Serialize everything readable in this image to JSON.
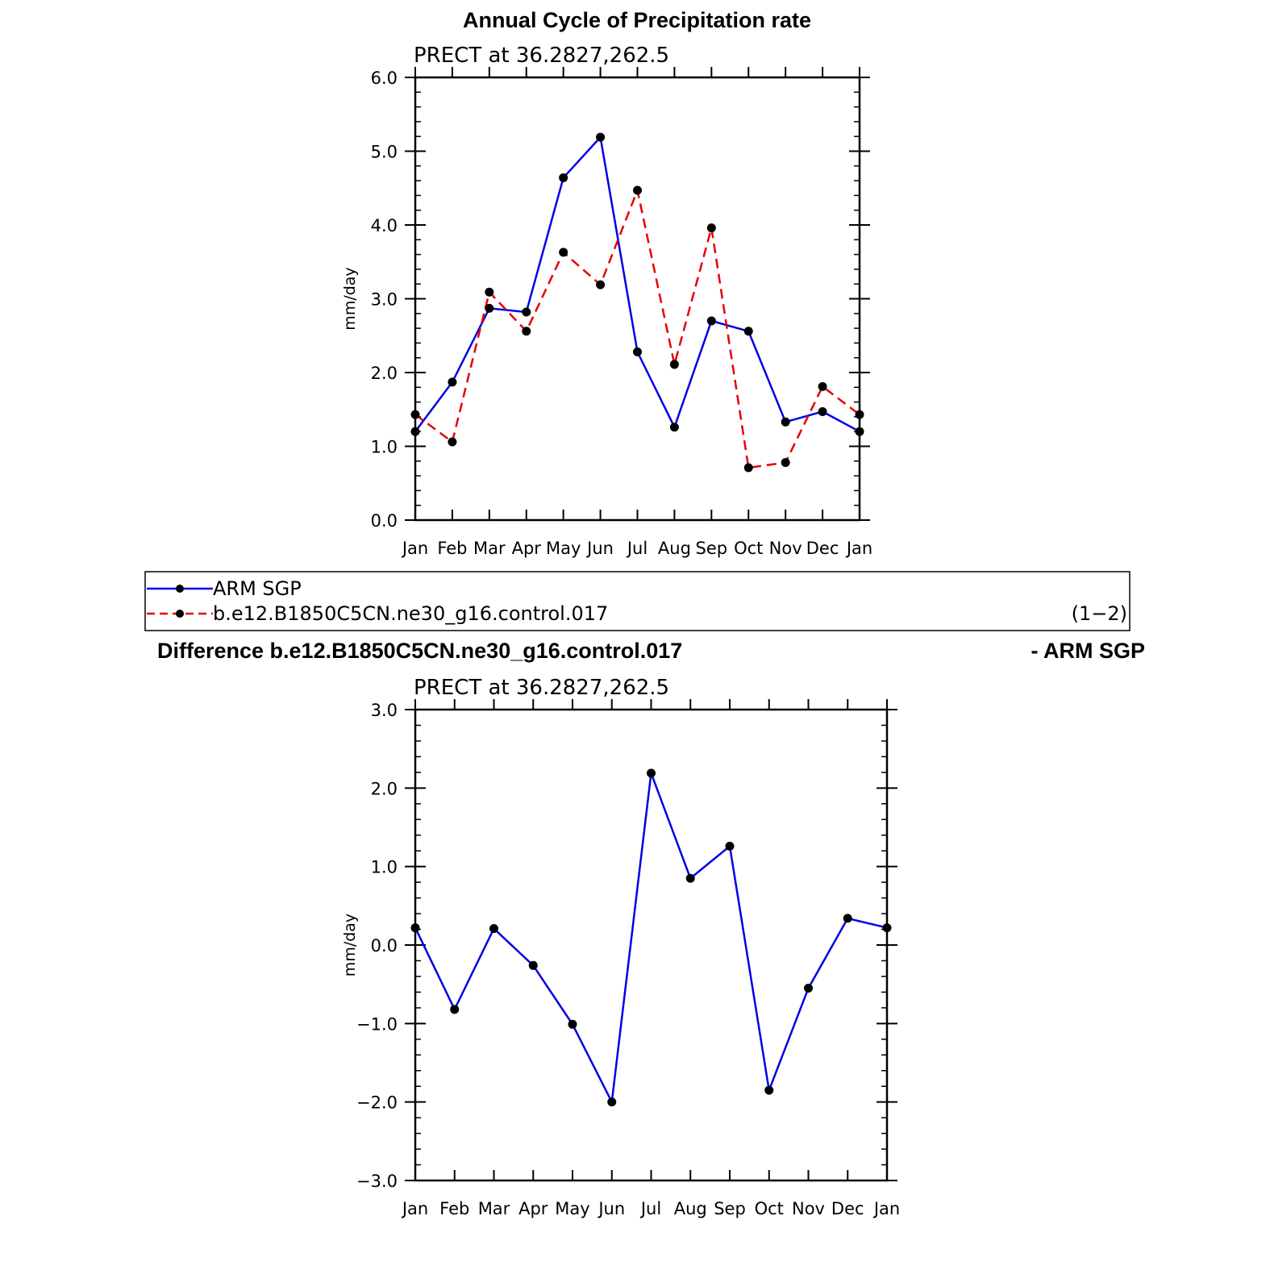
{
  "top_title": "Annual Cycle of Precipitation rate",
  "diff_title_left": "Difference b.e12.B1850C5CN.ne30_g16.control.017",
  "diff_title_right": "- ARM SGP",
  "legend": {
    "entries": [
      {
        "label": "ARM SGP",
        "color": "#0000e6",
        "dash": "solid"
      },
      {
        "label": "b.e12.B1850C5CN.ne30_g16.control.017",
        "color": "#e60000",
        "dash": "dashed"
      }
    ],
    "note": "(1−2)"
  },
  "chart_data": [
    {
      "type": "line",
      "title": "PRECT at 36.2827,262.5",
      "ylabel": "mm/day",
      "xlabel": "",
      "categories": [
        "Jan",
        "Feb",
        "Mar",
        "Apr",
        "May",
        "Jun",
        "Jul",
        "Aug",
        "Sep",
        "Oct",
        "Nov",
        "Dec",
        "Jan"
      ],
      "ylim": [
        0,
        6
      ],
      "yticks": [
        "0.0",
        "1.0",
        "2.0",
        "3.0",
        "4.0",
        "5.0",
        "6.0"
      ],
      "series": [
        {
          "name": "ARM SGP",
          "color": "#0000e6",
          "dash": "solid",
          "values": [
            1.2,
            1.87,
            2.87,
            2.82,
            4.64,
            5.19,
            2.28,
            1.26,
            2.7,
            2.56,
            1.33,
            1.47,
            1.2
          ]
        },
        {
          "name": "b.e12.B1850C5CN.ne30_g16.control.017",
          "color": "#e60000",
          "dash": "dashed",
          "values": [
            1.43,
            1.06,
            3.09,
            2.56,
            3.63,
            3.19,
            4.47,
            2.11,
            3.96,
            0.71,
            0.78,
            1.81,
            1.43
          ]
        }
      ]
    },
    {
      "type": "line",
      "title": "PRECT at 36.2827,262.5",
      "ylabel": "mm/day",
      "xlabel": "",
      "categories": [
        "Jan",
        "Feb",
        "Mar",
        "Apr",
        "May",
        "Jun",
        "Jul",
        "Aug",
        "Sep",
        "Oct",
        "Nov",
        "Dec",
        "Jan"
      ],
      "ylim": [
        -3,
        3
      ],
      "yticks": [
        "−3.0",
        "−2.0",
        "−1.0",
        "0.0",
        "1.0",
        "2.0",
        "3.0"
      ],
      "series": [
        {
          "name": "",
          "color": "#0000e6",
          "dash": "solid",
          "values": [
            0.22,
            -0.82,
            0.21,
            -0.26,
            -1.01,
            -2.0,
            2.19,
            0.85,
            1.26,
            -1.85,
            -0.55,
            0.34,
            0.22
          ]
        }
      ]
    }
  ]
}
